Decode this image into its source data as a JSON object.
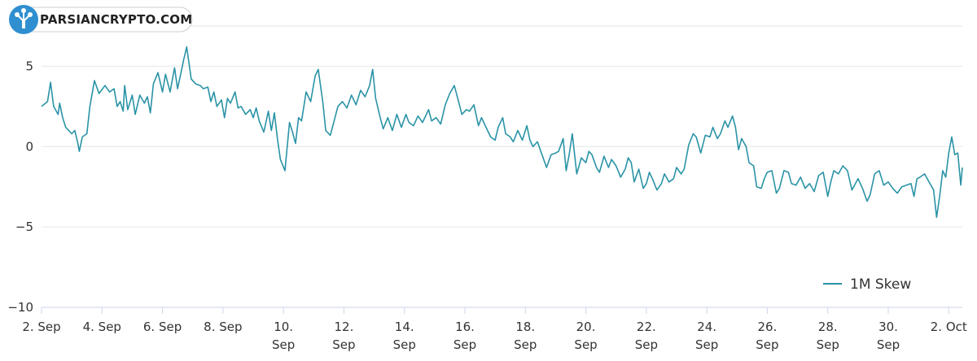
{
  "brand": {
    "name": "PARSIANCRYPTO.COM",
    "accent": "#2f8fd0"
  },
  "chart_data": {
    "type": "line",
    "grid": true,
    "legend_position": "bottom-right",
    "x_range": [
      0,
      30.45
    ],
    "ylim": [
      -10,
      7.5
    ],
    "y_ticks": [
      {
        "value": 5,
        "label": "5"
      },
      {
        "value": 0,
        "label": "0"
      },
      {
        "value": -5,
        "label": "−5"
      },
      {
        "value": -10,
        "label": "−10"
      }
    ],
    "x_ticks": [
      {
        "day": 0,
        "lines": [
          "2. Sep"
        ]
      },
      {
        "day": 2,
        "lines": [
          "4. Sep"
        ]
      },
      {
        "day": 4,
        "lines": [
          "6. Sep"
        ]
      },
      {
        "day": 6,
        "lines": [
          "8. Sep"
        ]
      },
      {
        "day": 8,
        "lines": [
          "10.",
          "Sep"
        ]
      },
      {
        "day": 10,
        "lines": [
          "12.",
          "Sep"
        ]
      },
      {
        "day": 12,
        "lines": [
          "14.",
          "Sep"
        ]
      },
      {
        "day": 14,
        "lines": [
          "16.",
          "Sep"
        ]
      },
      {
        "day": 16,
        "lines": [
          "18.",
          "Sep"
        ]
      },
      {
        "day": 18,
        "lines": [
          "20.",
          "Sep"
        ]
      },
      {
        "day": 20,
        "lines": [
          "22.",
          "Sep"
        ]
      },
      {
        "day": 22,
        "lines": [
          "24.",
          "Sep"
        ]
      },
      {
        "day": 24,
        "lines": [
          "26.",
          "Sep"
        ]
      },
      {
        "day": 26,
        "lines": [
          "28.",
          "Sep"
        ]
      },
      {
        "day": 28,
        "lines": [
          "30.",
          "Sep"
        ]
      },
      {
        "day": 30,
        "lines": [
          "2. Oct"
        ]
      }
    ],
    "series": [
      {
        "name": "1M Skew",
        "color": "#2a93a6",
        "points": [
          [
            0,
            2.5
          ],
          [
            0.2,
            2.8
          ],
          [
            0.3,
            4.0
          ],
          [
            0.4,
            2.5
          ],
          [
            0.55,
            2.0
          ],
          [
            0.6,
            2.7
          ],
          [
            0.7,
            1.8
          ],
          [
            0.8,
            1.2
          ],
          [
            1.0,
            0.8
          ],
          [
            1.1,
            1.0
          ],
          [
            1.2,
            0.2
          ],
          [
            1.25,
            -0.3
          ],
          [
            1.35,
            0.6
          ],
          [
            1.5,
            0.8
          ],
          [
            1.6,
            2.5
          ],
          [
            1.75,
            4.1
          ],
          [
            1.9,
            3.3
          ],
          [
            2.1,
            3.8
          ],
          [
            2.25,
            3.4
          ],
          [
            2.4,
            3.6
          ],
          [
            2.5,
            2.5
          ],
          [
            2.6,
            2.8
          ],
          [
            2.7,
            2.2
          ],
          [
            2.75,
            3.8
          ],
          [
            2.85,
            2.3
          ],
          [
            3.0,
            3.2
          ],
          [
            3.1,
            2.0
          ],
          [
            3.25,
            3.2
          ],
          [
            3.4,
            2.7
          ],
          [
            3.5,
            3.1
          ],
          [
            3.6,
            2.1
          ],
          [
            3.7,
            3.9
          ],
          [
            3.85,
            4.6
          ],
          [
            4.0,
            3.4
          ],
          [
            4.1,
            4.5
          ],
          [
            4.25,
            3.4
          ],
          [
            4.4,
            4.9
          ],
          [
            4.5,
            3.6
          ],
          [
            4.6,
            4.5
          ],
          [
            4.7,
            5.4
          ],
          [
            4.8,
            6.2
          ],
          [
            4.95,
            4.2
          ],
          [
            5.1,
            3.9
          ],
          [
            5.25,
            3.8
          ],
          [
            5.35,
            3.6
          ],
          [
            5.5,
            3.7
          ],
          [
            5.6,
            2.8
          ],
          [
            5.7,
            3.4
          ],
          [
            5.8,
            2.5
          ],
          [
            5.95,
            2.9
          ],
          [
            6.05,
            1.8
          ],
          [
            6.15,
            3.0
          ],
          [
            6.25,
            2.7
          ],
          [
            6.4,
            3.4
          ],
          [
            6.5,
            2.4
          ],
          [
            6.6,
            2.5
          ],
          [
            6.75,
            2.0
          ],
          [
            6.9,
            2.3
          ],
          [
            7.0,
            1.8
          ],
          [
            7.1,
            2.4
          ],
          [
            7.2,
            1.6
          ],
          [
            7.35,
            0.9
          ],
          [
            7.5,
            2.2
          ],
          [
            7.6,
            1.0
          ],
          [
            7.7,
            2.1
          ],
          [
            7.8,
            0.5
          ],
          [
            7.9,
            -0.8
          ],
          [
            8.05,
            -1.5
          ],
          [
            8.2,
            1.5
          ],
          [
            8.3,
            0.9
          ],
          [
            8.4,
            0.2
          ],
          [
            8.5,
            1.8
          ],
          [
            8.6,
            1.6
          ],
          [
            8.75,
            3.4
          ],
          [
            8.9,
            2.8
          ],
          [
            9.05,
            4.4
          ],
          [
            9.15,
            4.8
          ],
          [
            9.3,
            2.8
          ],
          [
            9.4,
            1.0
          ],
          [
            9.55,
            0.7
          ],
          [
            9.65,
            1.4
          ],
          [
            9.8,
            2.5
          ],
          [
            9.95,
            2.8
          ],
          [
            10.1,
            2.4
          ],
          [
            10.25,
            3.2
          ],
          [
            10.4,
            2.6
          ],
          [
            10.55,
            3.5
          ],
          [
            10.7,
            3.1
          ],
          [
            10.85,
            3.8
          ],
          [
            10.95,
            4.8
          ],
          [
            11.05,
            3.0
          ],
          [
            11.2,
            1.8
          ],
          [
            11.3,
            1.1
          ],
          [
            11.45,
            1.8
          ],
          [
            11.6,
            1.0
          ],
          [
            11.75,
            2.0
          ],
          [
            11.9,
            1.2
          ],
          [
            12.05,
            2.0
          ],
          [
            12.15,
            1.5
          ],
          [
            12.3,
            1.3
          ],
          [
            12.45,
            1.9
          ],
          [
            12.6,
            1.5
          ],
          [
            12.8,
            2.3
          ],
          [
            12.9,
            1.6
          ],
          [
            13.05,
            1.8
          ],
          [
            13.2,
            1.4
          ],
          [
            13.35,
            2.6
          ],
          [
            13.5,
            3.3
          ],
          [
            13.65,
            3.8
          ],
          [
            13.75,
            3.1
          ],
          [
            13.9,
            2.0
          ],
          [
            14.05,
            2.3
          ],
          [
            14.15,
            2.2
          ],
          [
            14.3,
            2.6
          ],
          [
            14.45,
            1.3
          ],
          [
            14.55,
            1.8
          ],
          [
            14.7,
            1.2
          ],
          [
            14.85,
            0.6
          ],
          [
            15.0,
            0.4
          ],
          [
            15.1,
            1.2
          ],
          [
            15.25,
            1.8
          ],
          [
            15.35,
            0.8
          ],
          [
            15.5,
            0.6
          ],
          [
            15.6,
            0.3
          ],
          [
            15.75,
            1.0
          ],
          [
            15.9,
            0.4
          ],
          [
            16.05,
            1.3
          ],
          [
            16.15,
            0.4
          ],
          [
            16.25,
            0.0
          ],
          [
            16.4,
            0.3
          ],
          [
            16.55,
            -0.5
          ],
          [
            16.7,
            -1.3
          ],
          [
            16.85,
            -0.5
          ],
          [
            17.0,
            -0.4
          ],
          [
            17.1,
            -0.3
          ],
          [
            17.25,
            0.5
          ],
          [
            17.35,
            -1.5
          ],
          [
            17.45,
            -0.5
          ],
          [
            17.55,
            0.8
          ],
          [
            17.7,
            -1.7
          ],
          [
            17.85,
            -0.7
          ],
          [
            18.0,
            -1.0
          ],
          [
            18.1,
            -0.3
          ],
          [
            18.2,
            -0.5
          ],
          [
            18.35,
            -1.3
          ],
          [
            18.45,
            -1.6
          ],
          [
            18.6,
            -0.6
          ],
          [
            18.75,
            -1.3
          ],
          [
            18.85,
            -0.8
          ],
          [
            19.0,
            -1.2
          ],
          [
            19.15,
            -1.9
          ],
          [
            19.3,
            -1.4
          ],
          [
            19.4,
            -0.7
          ],
          [
            19.5,
            -1.0
          ],
          [
            19.6,
            -2.2
          ],
          [
            19.75,
            -1.4
          ],
          [
            19.9,
            -2.6
          ],
          [
            20.0,
            -2.3
          ],
          [
            20.1,
            -1.6
          ],
          [
            20.2,
            -2.0
          ],
          [
            20.35,
            -2.7
          ],
          [
            20.5,
            -2.3
          ],
          [
            20.6,
            -1.7
          ],
          [
            20.75,
            -2.2
          ],
          [
            20.9,
            -2.0
          ],
          [
            21.0,
            -1.3
          ],
          [
            21.15,
            -1.7
          ],
          [
            21.25,
            -1.4
          ],
          [
            21.4,
            0.1
          ],
          [
            21.55,
            0.8
          ],
          [
            21.65,
            0.6
          ],
          [
            21.8,
            -0.4
          ],
          [
            21.95,
            0.7
          ],
          [
            22.1,
            0.6
          ],
          [
            22.2,
            1.2
          ],
          [
            22.35,
            0.5
          ],
          [
            22.45,
            0.8
          ],
          [
            22.6,
            1.6
          ],
          [
            22.7,
            1.2
          ],
          [
            22.85,
            1.9
          ],
          [
            22.95,
            1.2
          ],
          [
            23.05,
            -0.2
          ],
          [
            23.15,
            0.5
          ],
          [
            23.3,
            0.0
          ],
          [
            23.4,
            -1.0
          ],
          [
            23.55,
            -1.2
          ],
          [
            23.65,
            -2.5
          ],
          [
            23.8,
            -2.6
          ],
          [
            23.9,
            -2.0
          ],
          [
            24.0,
            -1.6
          ],
          [
            24.15,
            -1.5
          ],
          [
            24.3,
            -2.9
          ],
          [
            24.4,
            -2.6
          ],
          [
            24.55,
            -1.5
          ],
          [
            24.7,
            -1.6
          ],
          [
            24.8,
            -2.3
          ],
          [
            24.95,
            -2.4
          ],
          [
            25.1,
            -1.9
          ],
          [
            25.25,
            -2.6
          ],
          [
            25.4,
            -2.3
          ],
          [
            25.55,
            -2.8
          ],
          [
            25.7,
            -1.8
          ],
          [
            25.85,
            -1.6
          ],
          [
            26.0,
            -3.1
          ],
          [
            26.1,
            -2.2
          ],
          [
            26.2,
            -1.5
          ],
          [
            26.35,
            -1.7
          ],
          [
            26.5,
            -1.2
          ],
          [
            26.65,
            -1.5
          ],
          [
            26.8,
            -2.7
          ],
          [
            27.0,
            -2.0
          ],
          [
            27.15,
            -2.6
          ],
          [
            27.3,
            -3.4
          ],
          [
            27.4,
            -3.0
          ],
          [
            27.55,
            -1.7
          ],
          [
            27.7,
            -1.5
          ],
          [
            27.85,
            -2.4
          ],
          [
            28.0,
            -2.2
          ],
          [
            28.15,
            -2.6
          ],
          [
            28.3,
            -2.9
          ],
          [
            28.45,
            -2.5
          ],
          [
            28.6,
            -2.4
          ],
          [
            28.75,
            -2.3
          ],
          [
            28.85,
            -3.1
          ],
          [
            28.95,
            -2.0
          ],
          [
            29.05,
            -1.9
          ],
          [
            29.2,
            -1.7
          ],
          [
            29.35,
            -2.2
          ],
          [
            29.5,
            -2.7
          ],
          [
            29.6,
            -4.4
          ],
          [
            29.7,
            -3.1
          ],
          [
            29.8,
            -1.5
          ],
          [
            29.9,
            -1.9
          ],
          [
            30.0,
            -0.4
          ],
          [
            30.1,
            0.6
          ],
          [
            30.2,
            -0.5
          ],
          [
            30.3,
            -0.4
          ],
          [
            30.4,
            -2.4
          ],
          [
            30.45,
            -1.3
          ]
        ]
      }
    ]
  }
}
